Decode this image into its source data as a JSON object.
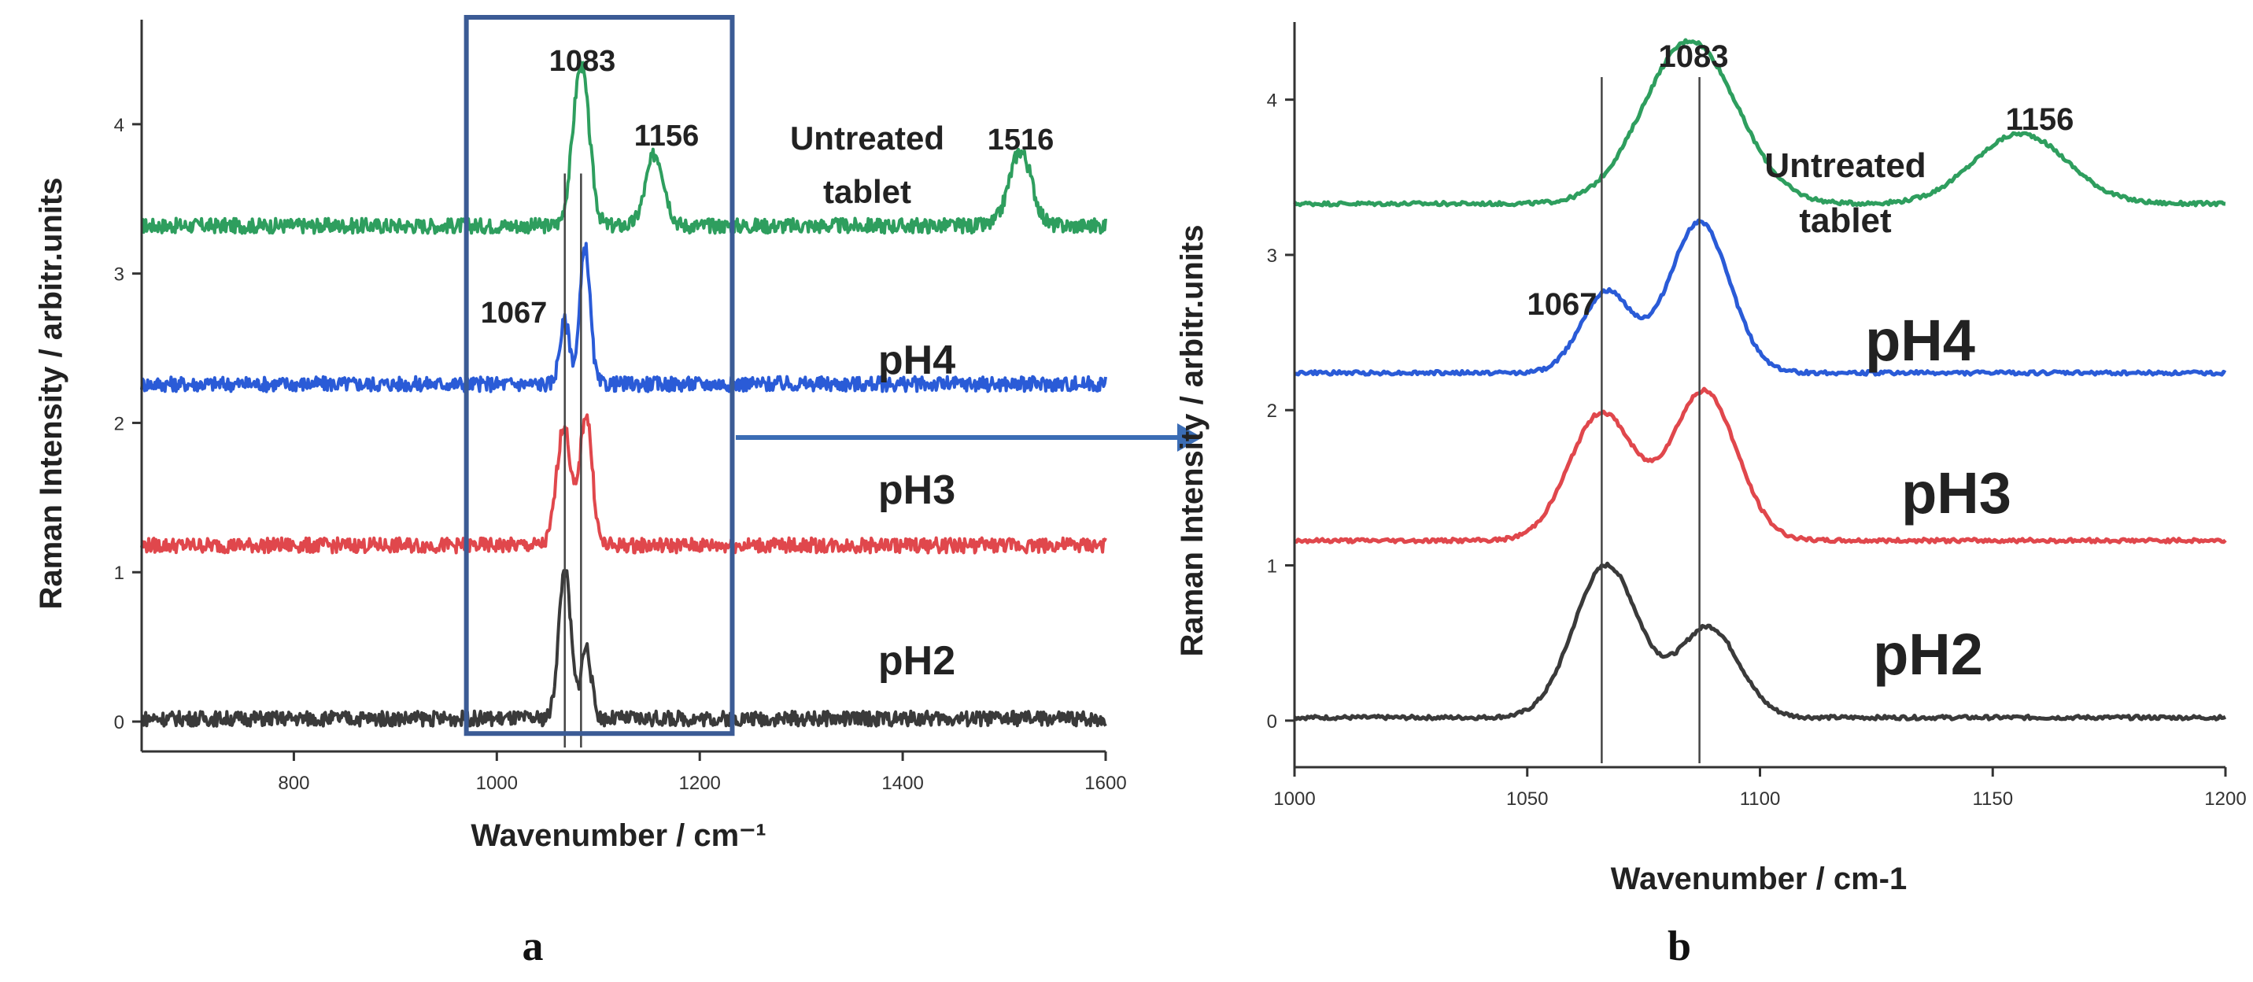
{
  "figure": {
    "panel_letters": [
      "a",
      "b"
    ]
  },
  "colors": {
    "untreated": "#2e9e5e",
    "pH4": "#2a5bd7",
    "pH3": "#e0474c",
    "pH2": "#3a3a3a",
    "zoom_box": "#3b5b95",
    "arrow": "#3b6db5"
  },
  "chart_data": [
    {
      "panel": "a",
      "type": "line",
      "title": "",
      "xlabel": "Wavenumber / cm⁻¹",
      "ylabel": "Raman Intensity / arbitr.units",
      "xlim": [
        650,
        1600
      ],
      "ylim": [
        -0.2,
        4.7
      ],
      "xticks": [
        800,
        1000,
        1200,
        1400,
        1600
      ],
      "yticks": [
        0,
        1,
        2,
        3,
        4
      ],
      "zoom_region": [
        970,
        1232
      ],
      "series": [
        {
          "name": "Untreated tablet",
          "label": "Untreated\ntablet",
          "color_key": "untreated",
          "baseline": 3.32,
          "peaks": [
            {
              "x": 1083,
              "h": 1.08,
              "w": 8
            },
            {
              "x": 1156,
              "h": 0.48,
              "w": 9
            },
            {
              "x": 1516,
              "h": 0.5,
              "w": 11
            }
          ]
        },
        {
          "name": "pH4",
          "label": "pH4",
          "color_key": "pH4",
          "baseline": 2.26,
          "peaks": [
            {
              "x": 1067,
              "h": 0.42,
              "w": 5
            },
            {
              "x": 1087,
              "h": 0.92,
              "w": 5
            }
          ]
        },
        {
          "name": "pH3",
          "label": "pH3",
          "color_key": "pH3",
          "baseline": 1.18,
          "peaks": [
            {
              "x": 1066,
              "h": 0.8,
              "w": 7
            },
            {
              "x": 1088,
              "h": 0.88,
              "w": 6
            }
          ]
        },
        {
          "name": "pH2",
          "label": "pH2",
          "color_key": "pH2",
          "baseline": 0.02,
          "peaks": [
            {
              "x": 1067,
              "h": 1.0,
              "w": 6
            },
            {
              "x": 1088,
              "h": 0.48,
              "w": 5
            }
          ]
        }
      ],
      "peak_labels": [
        "1083",
        "1156",
        "1516",
        "1067"
      ],
      "vertical_lines": [
        1067,
        1083
      ]
    },
    {
      "panel": "b",
      "type": "line",
      "title": "",
      "xlabel": "Wavenumber / cm-1",
      "ylabel": "Raman Intensity / arbitr.units",
      "xlim": [
        1000,
        1200
      ],
      "ylim": [
        -0.3,
        4.5
      ],
      "xticks": [
        1000,
        1050,
        1100,
        1150,
        1200
      ],
      "yticks": [
        0,
        1,
        2,
        3,
        4
      ],
      "series": [
        {
          "name": "Untreated tablet",
          "label": "Untreated\ntablet",
          "color_key": "untreated",
          "baseline": 3.33,
          "peaks": [
            {
              "x": 1085,
              "h": 1.05,
              "w": 10
            },
            {
              "x": 1156,
              "h": 0.45,
              "w": 10
            }
          ]
        },
        {
          "name": "pH4",
          "label": "pH4",
          "color_key": "pH4",
          "baseline": 2.24,
          "peaks": [
            {
              "x": 1067,
              "h": 0.52,
              "w": 5.5
            },
            {
              "x": 1087,
              "h": 0.97,
              "w": 6.5
            }
          ]
        },
        {
          "name": "pH3",
          "label": "pH3",
          "color_key": "pH3",
          "baseline": 1.16,
          "peaks": [
            {
              "x": 1066,
              "h": 0.82,
              "w": 7
            },
            {
              "x": 1088,
              "h": 0.96,
              "w": 7
            }
          ]
        },
        {
          "name": "pH2",
          "label": "pH2",
          "color_key": "pH2",
          "baseline": 0.02,
          "peaks": [
            {
              "x": 1067,
              "h": 0.98,
              "w": 7
            },
            {
              "x": 1089,
              "h": 0.58,
              "w": 6.5
            }
          ]
        }
      ],
      "peak_labels": [
        "1083",
        "1067",
        "1156"
      ],
      "vertical_lines": [
        1066,
        1087
      ]
    }
  ]
}
